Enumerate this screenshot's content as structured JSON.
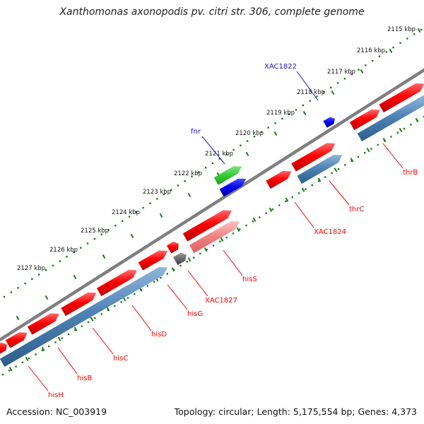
{
  "title": "Xanthomonas axonopodis pv. citri str. 306, complete genome",
  "footer": {
    "accession": "Accession: NC_003919",
    "summary": "Topology: circular; Length: 5,175,554 bp; Genes: 4,373"
  },
  "ruler": {
    "ticks": [
      "2115 kbp",
      "2116 kbp",
      "2117 kbp",
      "2118 kbp",
      "2119 kbp",
      "2120 kbp",
      "2121 kbp",
      "2122 kbp",
      "2123 kbp",
      "2124 kbp",
      "2125 kbp",
      "2126 kbp",
      "2127 kbp"
    ]
  },
  "features": [
    {
      "name": "fnr",
      "color": "#33cc33",
      "track": "outer"
    },
    {
      "name": "XAC1822",
      "color": "#0000ee",
      "track": "outer"
    },
    {
      "name": "thrB",
      "color": "#ff0000",
      "track": "inner"
    },
    {
      "name": "thrC",
      "color": "#ff0000",
      "track": "inner"
    },
    {
      "name": "XAC1824",
      "color": "#ff0000",
      "track": "inner"
    },
    {
      "name": "hisS",
      "color": "#ff0000",
      "track": "inner"
    },
    {
      "name": "XAC1827",
      "color": "#ff0000",
      "track": "inner"
    },
    {
      "name": "hisG",
      "color": "#ff0000",
      "track": "inner"
    },
    {
      "name": "hisD",
      "color": "#ff0000",
      "track": "inner"
    },
    {
      "name": "hisC",
      "color": "#ff0000",
      "track": "inner"
    },
    {
      "name": "hisB",
      "color": "#ff0000",
      "track": "inner"
    },
    {
      "name": "hisH",
      "color": "#ff0000",
      "track": "inner"
    }
  ],
  "colors": {
    "backbone": "#7f7f7f",
    "ruler": "#1a7a1a",
    "cds": "#ff0000",
    "cds_faded": "#f08080",
    "cds_blue": "#4f83b5",
    "gene_other": "#6a6a6a"
  }
}
